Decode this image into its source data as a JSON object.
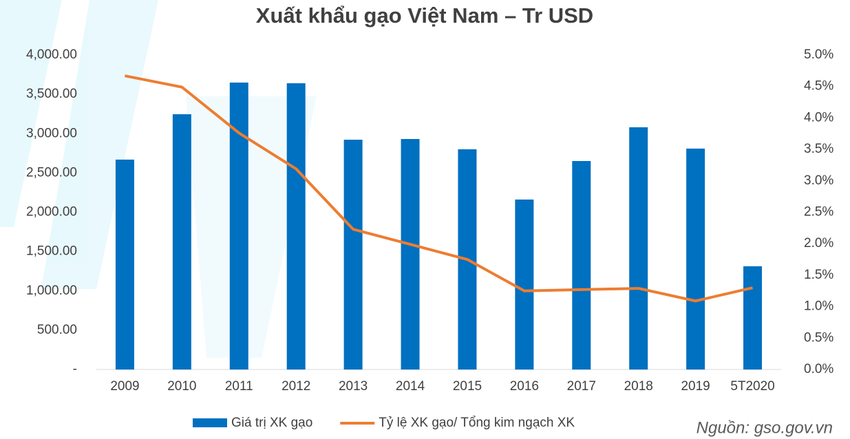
{
  "chart_data": {
    "type": "bar_line",
    "title": "Xuất khẩu gạo Việt Nam – Tr USD",
    "categories": [
      "2009",
      "2010",
      "2011",
      "2012",
      "2013",
      "2014",
      "2015",
      "2016",
      "2017",
      "2018",
      "2019",
      "5T2020"
    ],
    "series": [
      {
        "name": "Giá trị XK gạo",
        "type": "bar",
        "color": "#0070c0",
        "values": [
          2670,
          3247,
          3650,
          3641,
          2923,
          2932,
          2801,
          2162,
          2652,
          3081,
          2810,
          1313
        ]
      },
      {
        "name": "Tỷ lệ XK gạo/ Tổng kim ngạch XK",
        "type": "line",
        "axis": "y2",
        "color": "#ed7d31",
        "values": [
          4.67,
          4.49,
          3.76,
          3.19,
          2.23,
          1.99,
          1.75,
          1.25,
          1.27,
          1.29,
          1.09,
          1.3
        ]
      }
    ],
    "ylim": [
      0,
      4000
    ],
    "yticks": [
      {
        "value": 0,
        "label": "-"
      },
      {
        "value": 500,
        "label": "500.00"
      },
      {
        "value": 1000,
        "label": "1,000.00"
      },
      {
        "value": 1500,
        "label": "1,500.00"
      },
      {
        "value": 2000,
        "label": "2,000.00"
      },
      {
        "value": 2500,
        "label": "2,500.00"
      },
      {
        "value": 3000,
        "label": "3,000.00"
      },
      {
        "value": 3500,
        "label": "3,500.00"
      },
      {
        "value": 4000,
        "label": "4,000.00"
      }
    ],
    "y2lim": [
      0,
      5
    ],
    "y2ticks": [
      {
        "value": 0,
        "label": "0.0%"
      },
      {
        "value": 0.5,
        "label": "0.5%"
      },
      {
        "value": 1,
        "label": "1.0%"
      },
      {
        "value": 1.5,
        "label": "1.5%"
      },
      {
        "value": 2,
        "label": "2.0%"
      },
      {
        "value": 2.5,
        "label": "2.5%"
      },
      {
        "value": 3,
        "label": "3.0%"
      },
      {
        "value": 3.5,
        "label": "3.5%"
      },
      {
        "value": 4,
        "label": "4.0%"
      },
      {
        "value": 4.5,
        "label": "4.5%"
      },
      {
        "value": 5,
        "label": "5.0%"
      }
    ],
    "legend": "bottom",
    "annotation": "Nguồn: gso.gov.vn"
  }
}
